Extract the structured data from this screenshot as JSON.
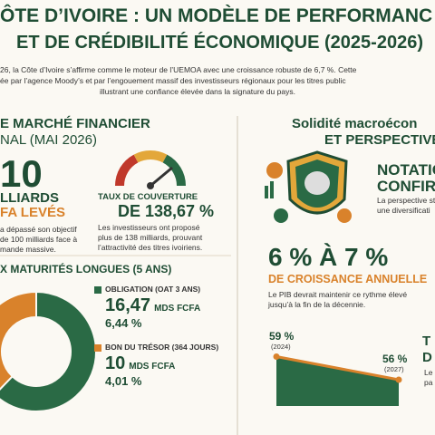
{
  "header": {
    "title_line1": "ÔTE D’IVOIRE : UN MODÈLE DE PERFORMANC",
    "title_line2": "ET DE CRÉDIBILITÉ ÉCONOMIQUE (2025-2026)",
    "intro": [
      "26, la Côte d’Ivoire s’affirme comme le moteur de l’UEMOA avec une croissance robuste de 6,7 %. Cette",
      "ée par l’agence Moody’s et par l’engouement massif des investisseurs régionaux pour les titres public",
      "illustrant une confiance élevée dans la signature du pays."
    ]
  },
  "market": {
    "heading_line1": "E MARCHÉ FINANCIER",
    "heading_line2": "NAL (MAI 2026)",
    "raised_value": "10",
    "raised_line1": "LLIARDS",
    "raised_line2": "FA LEVÉS",
    "raised_note": [
      "a dépassé son objectif",
      "de 100 milliards face à",
      "mande massive."
    ],
    "coverage_title": "TAUX DE COUVERTURE",
    "coverage_value": "DE 138,67 %",
    "coverage_note": [
      "Les investisseurs ont proposé",
      "plus de 138 milliards, prouvant",
      "l’attractivité des titres ivoiriens."
    ],
    "maturities_heading": "X MATURITÉS LONGUES (5 ANS)",
    "items": [
      {
        "label": "OBLIGATION (OAT 3 ANS)",
        "amount": 16.47,
        "amount_label": "16,47",
        "unit": "MDS FCFA",
        "rate": "6,44 %",
        "color": "#2a6a45"
      },
      {
        "label": "BON DU TRÉSOR (364 JOURS)",
        "amount": 10,
        "amount_label": "10",
        "unit": "MDS FCFA",
        "rate": "4,01 %",
        "color": "#d9822b"
      }
    ]
  },
  "macro": {
    "heading_line1": "Solidité macroécon",
    "heading_line2": "ET PERSPECTIVE",
    "rating_line1": "NOTATIO",
    "rating_line2": "CONFIR",
    "rating_note": [
      "La perspective st",
      "une diversificati"
    ],
    "growth_value": "6 % À 7 %",
    "growth_label": "DE CROISSANCE ANNUELLE",
    "growth_note": [
      "Le PIB devrait maintenir ce rythme élevé",
      "jusqu’à la fin de la décennie."
    ],
    "debt": {
      "x": [
        "(2024)",
        "(2027)"
      ],
      "values": [
        59,
        56
      ],
      "value_labels": [
        "59 %",
        "56 %"
      ]
    },
    "debt_side": [
      "T",
      "D",
      "Le",
      "pa"
    ]
  }
}
